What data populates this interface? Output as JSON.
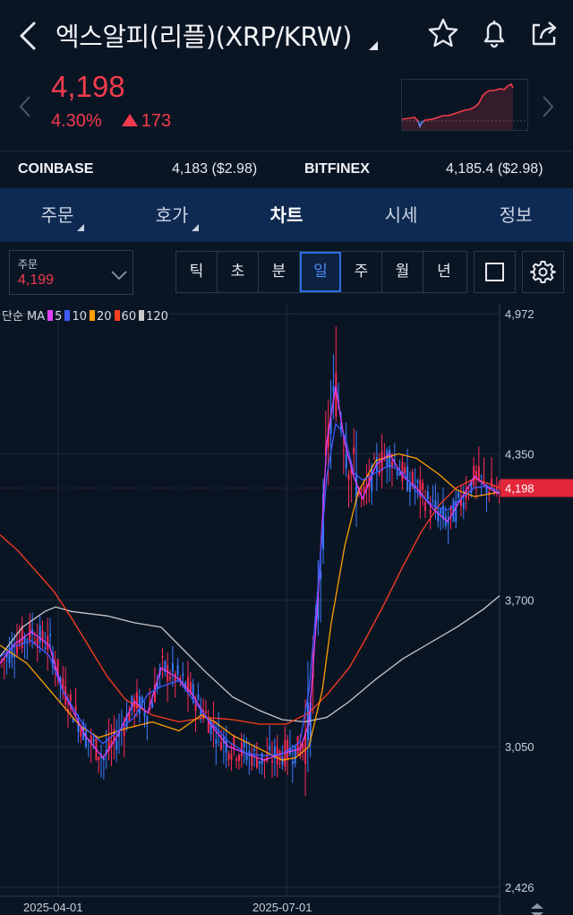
{
  "header": {
    "title": "엑스알피(리플)(XRP/KRW)",
    "icons": [
      "back-arrow-icon",
      "star-icon",
      "bell-icon",
      "share-icon"
    ]
  },
  "quote": {
    "price": "4,198",
    "change_pct": "4.30%",
    "change_abs": "173",
    "direction": "up",
    "color_up": "#f23b4c"
  },
  "exchanges": [
    {
      "name": "COINBASE",
      "value": "4,183 ($2.98)"
    },
    {
      "name": "BITFINEX",
      "value": "4,185.4 ($2.98)"
    }
  ],
  "tabs": [
    {
      "label": "주문",
      "has_menu": true
    },
    {
      "label": "호가",
      "has_menu": true
    },
    {
      "label": "차트",
      "active": true
    },
    {
      "label": "시세"
    },
    {
      "label": "정보"
    }
  ],
  "toolbar": {
    "order_label": "주문",
    "order_value": "4,199",
    "periods": [
      "틱",
      "초",
      "분",
      "일",
      "주",
      "월",
      "년"
    ],
    "selected_period": "일"
  },
  "chart_data": {
    "type": "candlestick",
    "indicator_label": "단순 MA",
    "ma_series": [
      {
        "name": "5",
        "color": "#e040fb"
      },
      {
        "name": "10",
        "color": "#3d5afe"
      },
      {
        "name": "20",
        "color": "#ffa000"
      },
      {
        "name": "60",
        "color": "#ff3d1f"
      },
      {
        "name": "120",
        "color": "#c8c8c8"
      }
    ],
    "y_ticks": [
      "4,972",
      "4,350",
      "3,700",
      "3,050",
      "2,426"
    ],
    "y_tick_values": [
      4972,
      4350,
      3700,
      3050,
      2426
    ],
    "ylim": [
      2426,
      4972
    ],
    "x_ticks": [
      "2025-04-01",
      "2025-07-01"
    ],
    "current_price": "4,198",
    "current_price_value": 4198,
    "ma_path_points": {
      "ma120": [
        [
          0,
          3450
        ],
        [
          25,
          3580
        ],
        [
          50,
          3650
        ],
        [
          62,
          3670
        ],
        [
          80,
          3650
        ],
        [
          120,
          3630
        ],
        [
          150,
          3600
        ],
        [
          180,
          3580
        ],
        [
          200,
          3500
        ],
        [
          230,
          3380
        ],
        [
          260,
          3270
        ],
        [
          290,
          3210
        ],
        [
          315,
          3170
        ],
        [
          340,
          3160
        ],
        [
          365,
          3180
        ],
        [
          390,
          3250
        ],
        [
          420,
          3350
        ],
        [
          450,
          3440
        ],
        [
          480,
          3510
        ],
        [
          510,
          3580
        ],
        [
          540,
          3660
        ],
        [
          558,
          3720
        ]
      ],
      "ma60": [
        [
          0,
          3990
        ],
        [
          20,
          3920
        ],
        [
          40,
          3830
        ],
        [
          60,
          3740
        ],
        [
          80,
          3620
        ],
        [
          100,
          3490
        ],
        [
          120,
          3360
        ],
        [
          140,
          3260
        ],
        [
          170,
          3190
        ],
        [
          200,
          3160
        ],
        [
          230,
          3180
        ],
        [
          260,
          3170
        ],
        [
          290,
          3150
        ],
        [
          320,
          3150
        ],
        [
          345,
          3200
        ],
        [
          365,
          3280
        ],
        [
          390,
          3400
        ],
        [
          410,
          3540
        ],
        [
          430,
          3690
        ],
        [
          450,
          3850
        ],
        [
          470,
          4000
        ],
        [
          490,
          4120
        ],
        [
          510,
          4200
        ],
        [
          530,
          4240
        ],
        [
          558,
          4200
        ]
      ],
      "ma20": [
        [
          0,
          3500
        ],
        [
          30,
          3420
        ],
        [
          60,
          3280
        ],
        [
          90,
          3140
        ],
        [
          110,
          3090
        ],
        [
          140,
          3130
        ],
        [
          170,
          3160
        ],
        [
          200,
          3120
        ],
        [
          225,
          3190
        ],
        [
          240,
          3160
        ],
        [
          260,
          3100
        ],
        [
          290,
          3040
        ],
        [
          315,
          2990
        ],
        [
          330,
          3000
        ],
        [
          345,
          3050
        ],
        [
          360,
          3300
        ],
        [
          370,
          3600
        ],
        [
          385,
          3940
        ],
        [
          400,
          4180
        ],
        [
          420,
          4320
        ],
        [
          445,
          4350
        ],
        [
          465,
          4330
        ],
        [
          490,
          4260
        ],
        [
          510,
          4190
        ],
        [
          530,
          4160
        ],
        [
          558,
          4180
        ]
      ],
      "ma5": [
        [
          0,
          3420
        ],
        [
          15,
          3500
        ],
        [
          35,
          3560
        ],
        [
          55,
          3500
        ],
        [
          70,
          3300
        ],
        [
          95,
          3100
        ],
        [
          115,
          3000
        ],
        [
          130,
          3090
        ],
        [
          150,
          3250
        ],
        [
          165,
          3200
        ],
        [
          180,
          3400
        ],
        [
          200,
          3350
        ],
        [
          215,
          3280
        ],
        [
          235,
          3150
        ],
        [
          255,
          3050
        ],
        [
          275,
          3020
        ],
        [
          295,
          2990
        ],
        [
          315,
          3020
        ],
        [
          335,
          3040
        ],
        [
          345,
          3150
        ],
        [
          355,
          3700
        ],
        [
          365,
          4400
        ],
        [
          375,
          4650
        ],
        [
          385,
          4400
        ],
        [
          395,
          4250
        ],
        [
          405,
          4150
        ],
        [
          420,
          4300
        ],
        [
          435,
          4350
        ],
        [
          450,
          4250
        ],
        [
          465,
          4200
        ],
        [
          485,
          4100
        ],
        [
          500,
          4050
        ],
        [
          515,
          4150
        ],
        [
          530,
          4250
        ],
        [
          545,
          4200
        ],
        [
          558,
          4170
        ]
      ]
    }
  }
}
